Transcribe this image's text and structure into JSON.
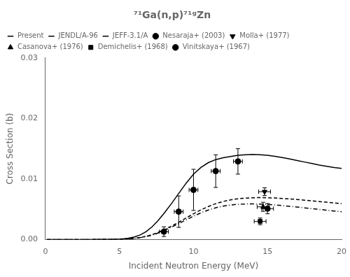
{
  "chart_data": {
    "type": "line",
    "title": "⁷¹Ga(n,p)⁷¹ᵍZn",
    "xlabel": "Incident Neutron Energy (MeV)",
    "ylabel": "Cross Section (b)",
    "xlim": [
      0,
      20
    ],
    "ylim": [
      0,
      0.03
    ],
    "xticks": [
      0,
      5,
      10,
      15,
      20
    ],
    "yticks": [
      {
        "value": 0.0,
        "label": "0.00"
      },
      {
        "value": 0.01,
        "label": "0.01"
      },
      {
        "value": 0.02,
        "label": "0.02"
      },
      {
        "value": 0.03,
        "label": "0.03"
      }
    ],
    "grid": false,
    "legend": "upper left",
    "color": "black",
    "series": [
      {
        "name": "Present",
        "type": "line",
        "line_style": "solid",
        "x": [
          0.1,
          1.0,
          2.0,
          3.0,
          4.0,
          4.5,
          5.0,
          5.3,
          5.6,
          6.0,
          6.4,
          6.8,
          7.2,
          7.6,
          8.0,
          8.5,
          9.0,
          9.5,
          10.0,
          10.5,
          11.0,
          11.5,
          12.0,
          12.5,
          13.0,
          13.5,
          14.0,
          14.5,
          15.0,
          15.5,
          16.0,
          16.5,
          17.0,
          17.5,
          18.0,
          18.5,
          19.0,
          19.5,
          20.0
        ],
        "values": [
          0.0,
          0.0,
          0.0,
          0.0,
          1e-05,
          3e-05,
          7e-05,
          0.00012,
          0.00022,
          0.00042,
          0.00075,
          0.0013,
          0.0021,
          0.0031,
          0.0043,
          0.0059,
          0.0076,
          0.0093,
          0.0108,
          0.0119,
          0.0127,
          0.0132,
          0.0135,
          0.0137,
          0.0139,
          0.014,
          0.01405,
          0.014,
          0.0139,
          0.01375,
          0.01355,
          0.0133,
          0.01305,
          0.0128,
          0.01255,
          0.0123,
          0.0121,
          0.0119,
          0.01175
        ]
      },
      {
        "name": "JENDL/A-96",
        "type": "line",
        "line_style": "dashed",
        "x": [
          0.1,
          1.0,
          2.0,
          3.0,
          4.0,
          4.5,
          5.0,
          5.5,
          6.0,
          6.5,
          7.0,
          7.5,
          8.0,
          8.5,
          9.0,
          9.5,
          10.0,
          10.5,
          11.0,
          11.5,
          12.0,
          12.5,
          13.0,
          13.5,
          14.0,
          14.5,
          15.0,
          15.5,
          16.0,
          16.5,
          17.0,
          17.5,
          18.0,
          18.5,
          19.0,
          19.5,
          20.0
        ],
        "values": [
          0.0,
          0.0,
          0.0,
          0.0,
          1e-05,
          2e-05,
          5e-05,
          0.0001,
          0.0002,
          0.00038,
          0.00065,
          0.00105,
          0.0016,
          0.0022,
          0.00285,
          0.00355,
          0.00425,
          0.0049,
          0.00545,
          0.00592,
          0.00628,
          0.00655,
          0.00673,
          0.00684,
          0.0069,
          0.00692,
          0.0069,
          0.00686,
          0.00679,
          0.00671,
          0.00661,
          0.0065,
          0.00639,
          0.00627,
          0.00616,
          0.00604,
          0.00593
        ]
      },
      {
        "name": "JEFF-3.1/A",
        "type": "line",
        "line_style": "dashdot",
        "x": [
          0.1,
          1.0,
          2.0,
          3.0,
          4.0,
          4.5,
          5.0,
          5.5,
          6.0,
          6.5,
          7.0,
          7.5,
          8.0,
          8.5,
          9.0,
          9.5,
          10.0,
          10.5,
          11.0,
          11.5,
          12.0,
          12.5,
          13.0,
          13.5,
          14.0,
          14.5,
          15.0,
          15.5,
          16.0,
          16.5,
          17.0,
          17.5,
          18.0,
          18.5,
          19.0,
          19.5,
          20.0
        ],
        "values": [
          0.0,
          0.0,
          0.0,
          0.0,
          1e-05,
          2e-05,
          4e-05,
          9e-05,
          0.00018,
          0.00035,
          0.0006,
          0.00097,
          0.00148,
          0.00204,
          0.00263,
          0.00325,
          0.00385,
          0.0044,
          0.00487,
          0.00524,
          0.00552,
          0.0057,
          0.00582,
          0.00587,
          0.00588,
          0.00585,
          0.00579,
          0.00571,
          0.0056,
          0.00548,
          0.00536,
          0.00523,
          0.0051,
          0.00497,
          0.00484,
          0.00471,
          0.00459
        ]
      },
      {
        "name": "Nesaraja+ (2003)",
        "type": "scatter",
        "marker": "circle",
        "x": [
          8.0,
          9.0,
          10.0,
          11.5,
          13.0
        ],
        "values": [
          0.0013,
          0.0046,
          0.0082,
          0.0113,
          0.0129
        ],
        "yerr": [
          0.0008,
          0.0026,
          0.0034,
          0.0027,
          0.0021
        ],
        "xerr": [
          0.3,
          0.3,
          0.3,
          0.3,
          0.3
        ]
      },
      {
        "name": "Molla+ (1977)",
        "type": "scatter",
        "marker": "triangle_down",
        "x": [
          14.8
        ],
        "values": [
          0.0079
        ],
        "yerr": [
          0.00065
        ],
        "xerr": [
          0.4
        ]
      },
      {
        "name": "Casanova+ (1976)",
        "type": "scatter",
        "marker": "triangle_up",
        "x": [
          14.7
        ],
        "values": [
          0.0054
        ],
        "yerr": [
          0.00075
        ],
        "xerr": [
          0.4
        ]
      },
      {
        "name": "Demichelis+ (1968)",
        "type": "scatter",
        "marker": "square",
        "x": [
          14.5
        ],
        "values": [
          0.003
        ],
        "yerr": [
          0.00055
        ],
        "xerr": [
          0.4
        ]
      },
      {
        "name": "Vinitskaya+ (1967)",
        "type": "scatter",
        "marker": "circle",
        "x": [
          15.0
        ],
        "values": [
          0.0051
        ],
        "yerr": [
          0.00085
        ],
        "xerr": [
          0.4
        ]
      }
    ]
  }
}
